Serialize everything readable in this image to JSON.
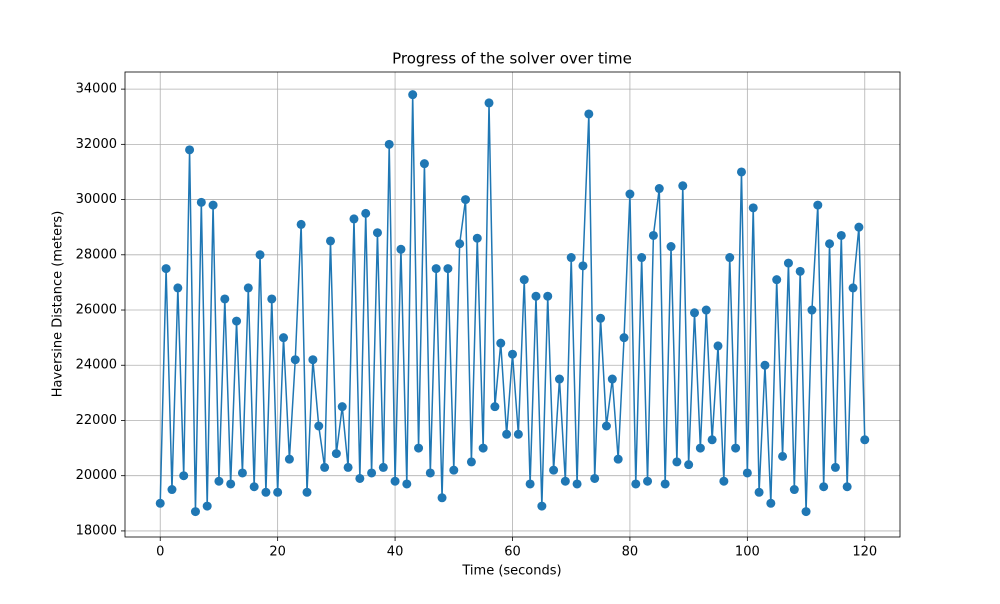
{
  "chart_data": {
    "type": "line",
    "title": "Progress of the solver over time",
    "x_label": "Time (seconds)",
    "y_label": "Haversine Distance (meters)",
    "color": "#1f77b4",
    "grid": true,
    "xlim": [
      -6,
      126
    ],
    "ylim": [
      17780,
      34620
    ],
    "xticks": [
      0,
      20,
      40,
      60,
      80,
      100,
      120
    ],
    "yticks": [
      18000,
      20000,
      22000,
      24000,
      26000,
      28000,
      30000,
      32000,
      34000
    ],
    "x": [
      0,
      1,
      2,
      3,
      4,
      5,
      6,
      7,
      8,
      9,
      10,
      11,
      12,
      13,
      14,
      15,
      16,
      17,
      18,
      19,
      20,
      21,
      22,
      23,
      24,
      25,
      26,
      27,
      28,
      29,
      30,
      31,
      32,
      33,
      34,
      35,
      36,
      37,
      38,
      39,
      40,
      41,
      42,
      43,
      44,
      45,
      46,
      47,
      48,
      49,
      50,
      51,
      52,
      53,
      54,
      55,
      56,
      57,
      58,
      59,
      60,
      61,
      62,
      63,
      64,
      65,
      66,
      67,
      68,
      69,
      70,
      71,
      72,
      73,
      74,
      75,
      76,
      77,
      78,
      79,
      80,
      81,
      82,
      83,
      84,
      85,
      86,
      87,
      88,
      89,
      90,
      91,
      92,
      93,
      94,
      95,
      96,
      97,
      98,
      99,
      100,
      101,
      102,
      103,
      104,
      105,
      106,
      107,
      108,
      109,
      110,
      111,
      112,
      113,
      114,
      115,
      116,
      117,
      118,
      119,
      120
    ],
    "values": [
      19000,
      27500,
      19500,
      26800,
      20000,
      31800,
      18700,
      29900,
      18900,
      29800,
      19800,
      26400,
      19700,
      25600,
      20100,
      26800,
      19600,
      28000,
      19400,
      26400,
      19400,
      25000,
      20600,
      24200,
      29100,
      19400,
      24200,
      21800,
      20300,
      28500,
      20800,
      22500,
      20300,
      29300,
      19900,
      29500,
      20100,
      28800,
      20300,
      32000,
      19800,
      28200,
      19700,
      33800,
      21000,
      31300,
      20100,
      27500,
      19200,
      27500,
      20200,
      28400,
      30000,
      20500,
      28600,
      21000,
      33500,
      22500,
      24800,
      21500,
      24400,
      21500,
      27100,
      19700,
      26500,
      18900,
      26500,
      20200,
      23500,
      19800,
      27900,
      19700,
      27600,
      33100,
      19900,
      25700,
      21800,
      23500,
      20600,
      25000,
      30200,
      19700,
      27900,
      19800,
      28700,
      30400,
      19700,
      28300,
      20500,
      30500,
      20400,
      25900,
      21000,
      26000,
      21300,
      24700,
      19800,
      27900,
      21000,
      31000,
      20100,
      29700,
      19400,
      24000,
      19000,
      27100,
      20700,
      27700,
      19500,
      27400,
      18700,
      26000,
      29800,
      19600,
      28400,
      20300,
      28700,
      19600,
      26800,
      29000,
      21300
    ]
  }
}
